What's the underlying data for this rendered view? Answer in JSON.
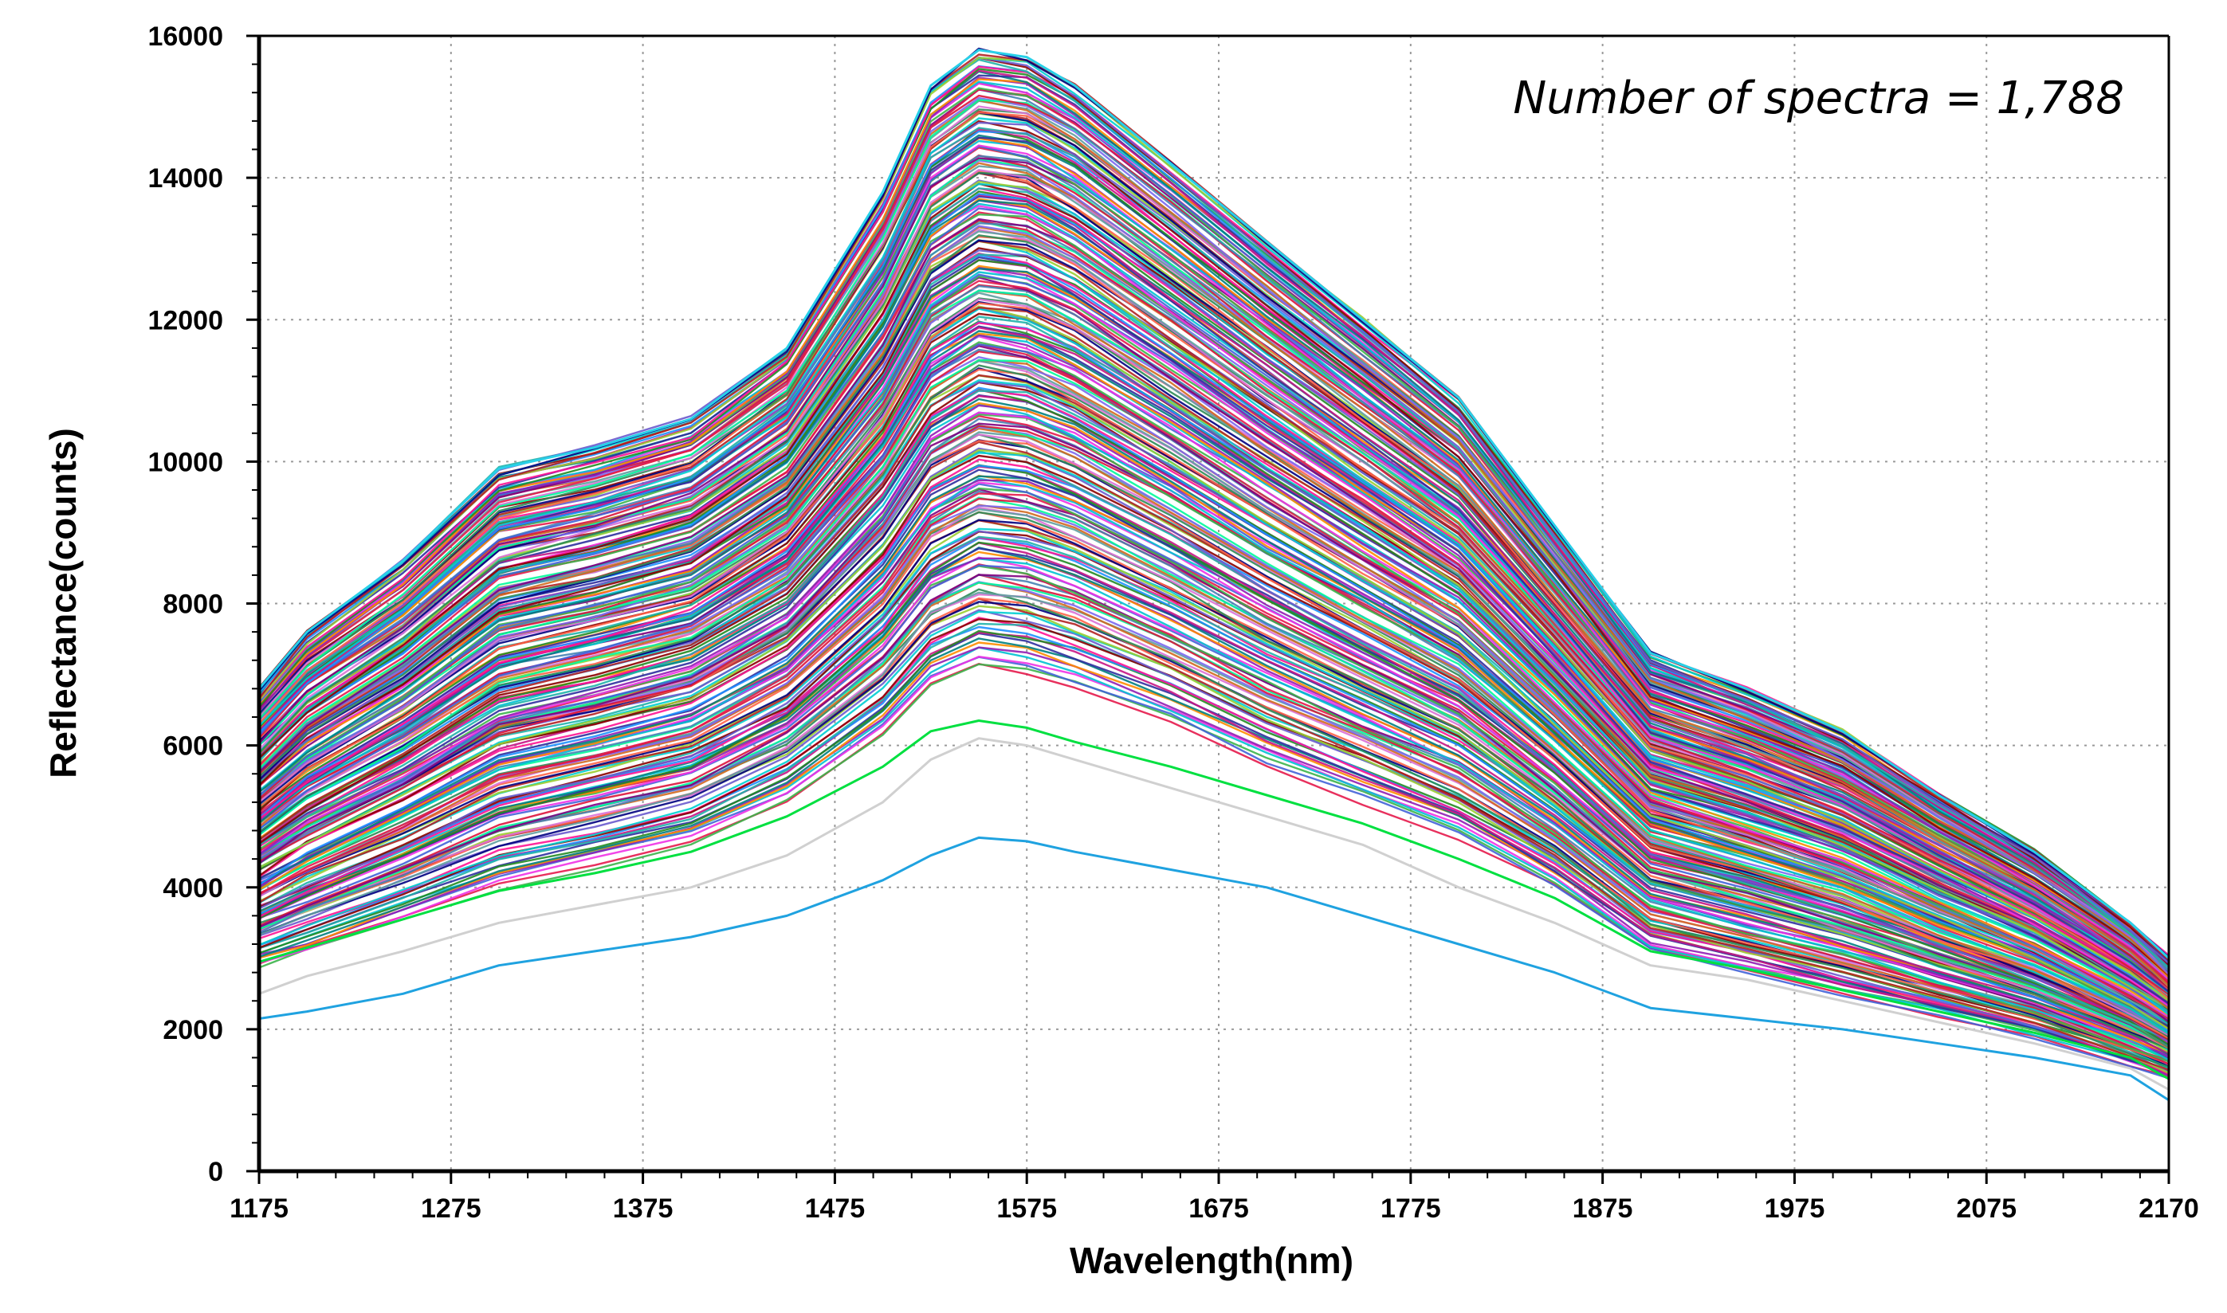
{
  "chart_data": {
    "type": "line",
    "title": "",
    "xlabel": "Wavelength(nm)",
    "ylabel": "Reflectance(counts)",
    "annotation": "Number of spectra = 1,788",
    "n_spectra": 1788,
    "xlim": [
      1175,
      2170
    ],
    "ylim": [
      0,
      16000
    ],
    "x_ticks": [
      1175,
      1275,
      1375,
      1475,
      1575,
      1675,
      1775,
      1875,
      1975,
      2075,
      2170
    ],
    "x_tick_labels": [
      "1175",
      "1275",
      "1375",
      "1475",
      "1575",
      "1675",
      "1775",
      "1875",
      "1975",
      "2075",
      "2170"
    ],
    "y_ticks": [
      0,
      2000,
      4000,
      6000,
      8000,
      10000,
      12000,
      14000,
      16000
    ],
    "y_tick_labels": [
      "0",
      "2000",
      "4000",
      "6000",
      "8000",
      "10000",
      "12000",
      "14000",
      "16000"
    ],
    "grid": "dotted",
    "x": [
      1175,
      1200,
      1250,
      1300,
      1350,
      1400,
      1450,
      1500,
      1525,
      1550,
      1575,
      1600,
      1650,
      1700,
      1750,
      1800,
      1850,
      1900,
      1950,
      2000,
      2050,
      2100,
      2150,
      2170
    ],
    "envelope_upper": [
      6800,
      7600,
      8600,
      9900,
      10200,
      10600,
      11600,
      13800,
      15300,
      15800,
      15700,
      15300,
      14200,
      13100,
      12000,
      10900,
      9100,
      7300,
      6800,
      6200,
      5300,
      4500,
      3500,
      3000
    ],
    "envelope_lower": [
      2900,
      3100,
      3550,
      4000,
      4300,
      4600,
      5200,
      6100,
      6800,
      7100,
      7000,
      6800,
      6300,
      5700,
      5200,
      4700,
      4000,
      3100,
      2800,
      2500,
      2200,
      1900,
      1500,
      1300
    ],
    "series": [
      {
        "name": "lowest spectrum",
        "color": "#1fa2e0",
        "values": [
          2150,
          2250,
          2500,
          2900,
          3100,
          3300,
          3600,
          4100,
          4450,
          4700,
          4650,
          4500,
          4250,
          4000,
          3600,
          3200,
          2800,
          2300,
          2150,
          2000,
          1800,
          1600,
          1350,
          1000
        ]
      },
      {
        "name": "second lowest spectrum",
        "color": "#d0d0d0",
        "values": [
          2500,
          2750,
          3100,
          3500,
          3750,
          4000,
          4450,
          5200,
          5800,
          6100,
          6000,
          5800,
          5400,
          5000,
          4600,
          4000,
          3500,
          2900,
          2700,
          2400,
          2100,
          1800,
          1450,
          1150
        ]
      },
      {
        "name": "third lowest spectrum",
        "color": "#00e040",
        "values": [
          2950,
          3150,
          3550,
          3950,
          4200,
          4500,
          5000,
          5700,
          6200,
          6350,
          6250,
          6050,
          5700,
          5300,
          4900,
          4400,
          3850,
          3100,
          2850,
          2550,
          2250,
          1950,
          1600,
          1300
        ]
      }
    ],
    "bundle_colors": [
      "#e6194b",
      "#3cb44b",
      "#4363d8",
      "#f032e6",
      "#00c2d1",
      "#911eb4",
      "#ff8c00",
      "#008080",
      "#2f2f9f",
      "#c71585",
      "#228b22",
      "#1e90ff",
      "#ff1493",
      "#20b2aa",
      "#8b0000",
      "#6a5acd",
      "#00ced1",
      "#9acd32",
      "#b22222",
      "#000080",
      "#ff6347",
      "#2e8b57",
      "#da70d6",
      "#5f9ea0",
      "#d2691e",
      "#7b68ee",
      "#00fa9a",
      "#dc143c",
      "#4682b4",
      "#800080"
    ]
  }
}
